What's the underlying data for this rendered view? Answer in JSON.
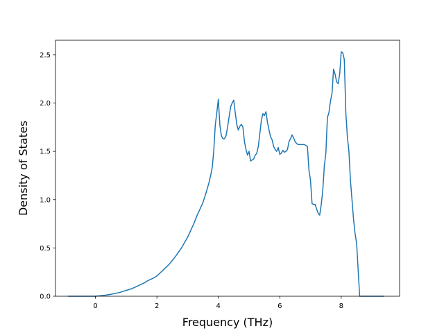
{
  "chart_data": {
    "type": "line",
    "title": "",
    "xlabel": "Frequency (THz)",
    "ylabel": "Density of States",
    "xlim": [
      -1.3,
      9.9
    ],
    "ylim": [
      0.0,
      2.65
    ],
    "xticks": [
      0,
      2,
      4,
      6,
      8
    ],
    "yticks": [
      0.0,
      0.5,
      1.0,
      1.5,
      2.0,
      2.5
    ],
    "xtick_labels": [
      "0",
      "2",
      "4",
      "6",
      "8"
    ],
    "ytick_labels": [
      "0.0",
      "0.5",
      "1.0",
      "1.5",
      "2.0",
      "2.5"
    ],
    "grid": false,
    "series": [
      {
        "color": "#1f77b4",
        "x": [
          -0.9,
          -0.5,
          0.0,
          0.3,
          0.5,
          0.8,
          1.0,
          1.2,
          1.4,
          1.6,
          1.7,
          1.9,
          2.0,
          2.2,
          2.4,
          2.5,
          2.6,
          2.8,
          3.0,
          3.2,
          3.3,
          3.4,
          3.5,
          3.6,
          3.7,
          3.75,
          3.8,
          3.85,
          3.9,
          3.95,
          4.0,
          4.05,
          4.1,
          4.15,
          4.2,
          4.25,
          4.3,
          4.4,
          4.45,
          4.5,
          4.55,
          4.6,
          4.65,
          4.7,
          4.75,
          4.8,
          4.85,
          4.9,
          4.95,
          5.0,
          5.05,
          5.1,
          5.15,
          5.2,
          5.25,
          5.3,
          5.35,
          5.4,
          5.45,
          5.5,
          5.55,
          5.6,
          5.65,
          5.7,
          5.75,
          5.8,
          5.85,
          5.9,
          5.95,
          6.0,
          6.05,
          6.1,
          6.15,
          6.2,
          6.25,
          6.3,
          6.35,
          6.4,
          6.45,
          6.5,
          6.55,
          6.6,
          6.7,
          6.8,
          6.9,
          6.95,
          7.0,
          7.05,
          7.1,
          7.15,
          7.2,
          7.25,
          7.3,
          7.35,
          7.4,
          7.45,
          7.5,
          7.55,
          7.6,
          7.65,
          7.7,
          7.75,
          7.8,
          7.85,
          7.9,
          7.95,
          8.0,
          8.05,
          8.1,
          8.15,
          8.2,
          8.25,
          8.3,
          8.35,
          8.4,
          8.45,
          8.5,
          8.55,
          8.6,
          8.65,
          8.7,
          9.0,
          9.4
        ],
        "y": [
          0.0,
          0.0,
          0.0,
          0.01,
          0.02,
          0.04,
          0.06,
          0.08,
          0.11,
          0.14,
          0.16,
          0.19,
          0.21,
          0.27,
          0.33,
          0.37,
          0.41,
          0.5,
          0.61,
          0.75,
          0.83,
          0.9,
          0.97,
          1.07,
          1.18,
          1.25,
          1.33,
          1.5,
          1.77,
          1.9,
          2.04,
          1.77,
          1.66,
          1.63,
          1.63,
          1.66,
          1.75,
          1.96,
          2.0,
          2.03,
          1.9,
          1.78,
          1.72,
          1.76,
          1.78,
          1.75,
          1.6,
          1.52,
          1.46,
          1.5,
          1.4,
          1.41,
          1.42,
          1.46,
          1.48,
          1.55,
          1.68,
          1.82,
          1.89,
          1.87,
          1.91,
          1.8,
          1.72,
          1.65,
          1.62,
          1.55,
          1.52,
          1.5,
          1.54,
          1.47,
          1.48,
          1.51,
          1.49,
          1.5,
          1.52,
          1.6,
          1.63,
          1.67,
          1.64,
          1.6,
          1.58,
          1.57,
          1.57,
          1.57,
          1.55,
          1.3,
          1.2,
          0.96,
          0.95,
          0.95,
          0.9,
          0.86,
          0.84,
          0.95,
          1.1,
          1.35,
          1.48,
          1.85,
          1.9,
          2.02,
          2.1,
          2.35,
          2.3,
          2.22,
          2.2,
          2.3,
          2.53,
          2.52,
          2.45,
          1.9,
          1.65,
          1.5,
          1.2,
          1.0,
          0.8,
          0.65,
          0.55,
          0.28,
          0.0,
          0.0,
          0.0,
          0.0,
          0.0
        ]
      }
    ]
  }
}
